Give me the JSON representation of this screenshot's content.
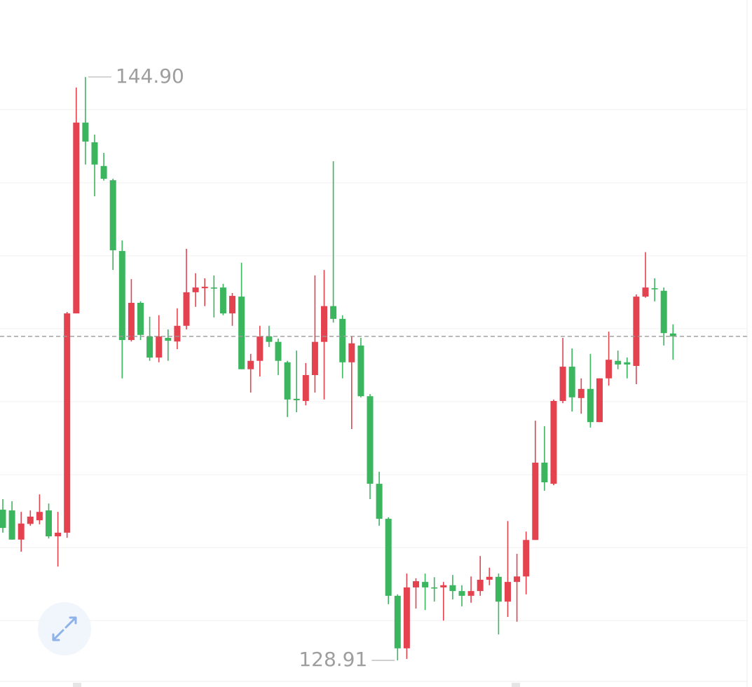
{
  "chart_data": {
    "type": "candlestick",
    "open": [
      133.04,
      133.02,
      132.22,
      132.65,
      132.75,
      133.02,
      132.31,
      132.41,
      138.42,
      143.65,
      143.11,
      142.46,
      142.07,
      140.13,
      137.69,
      138.71,
      137.79,
      137.21,
      137.75,
      137.65,
      138.08,
      139.0,
      139.11,
      139.13,
      139.13,
      138.42,
      138.88,
      136.89,
      137.12,
      137.79,
      137.64,
      137.08,
      136.08,
      136.02,
      136.73,
      137.64,
      138.62,
      138.27,
      137.08,
      137.54,
      136.15,
      133.75,
      132.79,
      130.68,
      129.24,
      130.91,
      131.06,
      130.91,
      130.91,
      130.97,
      130.81,
      130.68,
      130.81,
      131.12,
      131.2,
      130.52,
      131.06,
      131.21,
      132.21,
      134.33,
      133.75,
      136.02,
      136.96,
      136.1,
      136.35,
      135.44,
      136.64,
      137.12,
      137.08,
      136.98,
      138.88,
      139.11,
      139.04,
      137.87
    ],
    "high": [
      133.33,
      133.27,
      132.98,
      133.02,
      133.46,
      133.21,
      132.98,
      138.46,
      144.61,
      144.9,
      143.32,
      142.82,
      142.11,
      140.42,
      139.36,
      138.75,
      138.33,
      138.37,
      137.98,
      138.56,
      140.19,
      139.52,
      139.38,
      139.46,
      139.23,
      138.98,
      139.81,
      137.31,
      138.08,
      138.08,
      137.73,
      137.12,
      137.4,
      137.06,
      139.46,
      139.61,
      142.59,
      138.37,
      137.79,
      137.75,
      136.21,
      134.08,
      132.83,
      130.72,
      131.29,
      131.16,
      131.29,
      131.19,
      131.06,
      131.25,
      130.97,
      131.21,
      131.77,
      131.45,
      131.29,
      132.73,
      131.83,
      132.44,
      135.48,
      135.33,
      136.06,
      137.75,
      137.46,
      136.64,
      137.31,
      136.64,
      137.92,
      137.4,
      137.21,
      138.94,
      140.1,
      139.38,
      139.13,
      138.12
    ],
    "low": [
      132.41,
      132.22,
      131.89,
      132.6,
      132.64,
      132.25,
      131.48,
      132.27,
      138.42,
      142.5,
      141.63,
      142.06,
      139.61,
      136.64,
      137.65,
      137.69,
      137.12,
      137.08,
      137.12,
      137.44,
      137.98,
      138.6,
      138.62,
      138.31,
      138.37,
      138.08,
      136.89,
      136.25,
      136.69,
      137.5,
      136.73,
      135.58,
      135.71,
      135.9,
      136.25,
      136.06,
      138.17,
      136.64,
      135.25,
      136.12,
      133.33,
      132.6,
      130.45,
      128.91,
      128.95,
      130.33,
      130.29,
      130.52,
      130.0,
      130.58,
      130.39,
      130.49,
      130.68,
      130.97,
      129.62,
      130.1,
      129.97,
      130.72,
      132.21,
      133.56,
      133.71,
      135.96,
      135.73,
      135.67,
      135.29,
      135.44,
      136.44,
      136.89,
      136.64,
      136.48,
      138.85,
      138.75,
      137.54,
      137.15
    ],
    "close": [
      132.54,
      132.22,
      132.66,
      132.85,
      132.98,
      132.31,
      132.41,
      138.42,
      143.65,
      143.13,
      142.5,
      142.11,
      140.15,
      137.69,
      138.71,
      137.83,
      137.21,
      137.79,
      137.67,
      138.08,
      139.0,
      139.13,
      139.15,
      139.1,
      138.42,
      138.9,
      136.89,
      137.12,
      137.79,
      137.64,
      137.12,
      136.06,
      136.04,
      136.73,
      137.64,
      138.62,
      138.27,
      137.08,
      137.6,
      136.15,
      133.75,
      132.79,
      130.68,
      129.24,
      130.91,
      131.08,
      130.91,
      130.89,
      130.97,
      130.81,
      130.68,
      130.81,
      131.12,
      131.2,
      130.52,
      131.06,
      131.21,
      132.21,
      134.33,
      133.79,
      136.02,
      136.96,
      136.12,
      136.35,
      135.44,
      136.64,
      137.15,
      137.02,
      137.02,
      138.88,
      139.13,
      139.08,
      137.88,
      137.79
    ],
    "up_color": "#e5424f",
    "down_color": "#3bb55e",
    "ylim": [
      128.18,
      147.01
    ],
    "yticks": [
      130,
      132,
      134,
      136,
      138,
      140,
      142,
      144
    ],
    "grid": true,
    "last_price": 137.79,
    "high_label": {
      "value": 144.9,
      "label": "144.90"
    },
    "low_label": {
      "value": 128.91,
      "label": "128.91"
    }
  }
}
